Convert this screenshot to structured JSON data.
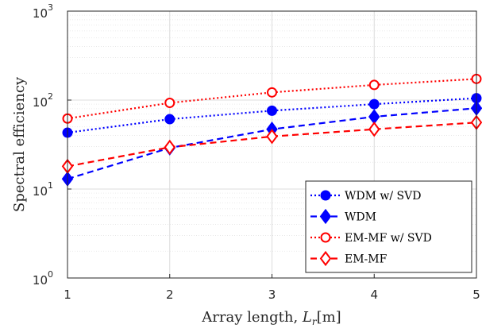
{
  "chart_data": {
    "type": "line",
    "xlabel": "Array length, ",
    "xlabel_math": "L",
    "xlabel_sub": "r",
    "xlabel_unit": "[m]",
    "ylabel": "Spectral efficiency",
    "x": [
      1,
      2,
      3,
      4,
      5
    ],
    "xlim": [
      1,
      5
    ],
    "ylim": [
      1,
      1000
    ],
    "yscale": "log",
    "grid": true,
    "legend_position": "bottom-right",
    "xticks": [
      "1",
      "2",
      "3",
      "4",
      "5"
    ],
    "yticks": [
      {
        "base": "10",
        "exp": "0"
      },
      {
        "base": "10",
        "exp": "1"
      },
      {
        "base": "10",
        "exp": "2"
      },
      {
        "base": "10",
        "exp": "3"
      }
    ],
    "series": [
      {
        "name": "WDM w/ SVD",
        "values": [
          43,
          61,
          76,
          90,
          105
        ],
        "color": "#0000ff",
        "dash": "dotted",
        "marker": "filled-circle"
      },
      {
        "name": "WDM",
        "values": [
          13,
          29,
          47,
          65,
          81
        ],
        "color": "#0000ff",
        "dash": "dashed",
        "marker": "filled-diamond"
      },
      {
        "name": "EM-MF w/ SVD",
        "values": [
          62,
          93,
          122,
          148,
          173
        ],
        "color": "#ff0000",
        "dash": "dotted",
        "marker": "open-circle"
      },
      {
        "name": "EM-MF",
        "values": [
          18,
          29.5,
          39,
          47,
          56
        ],
        "color": "#ff0000",
        "dash": "dashed",
        "marker": "open-diamond"
      }
    ]
  }
}
